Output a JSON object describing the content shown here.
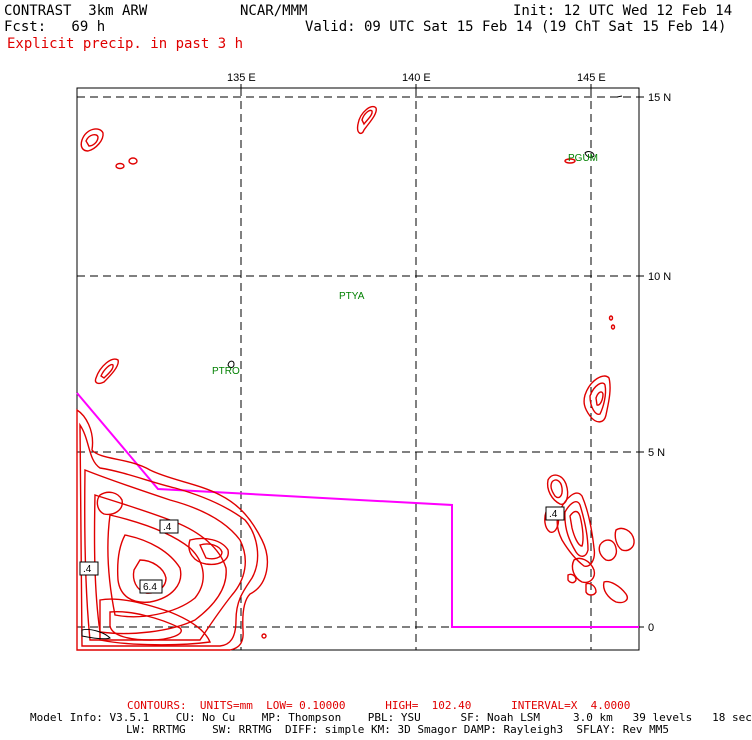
{
  "header": {
    "model": "CONTRAST  3km ARW",
    "institution": "NCAR/MMM",
    "init": "Init: 12 UTC Wed 12 Feb 14",
    "fcst": "Fcst:   69 h",
    "valid": "Valid: 09 UTC Sat 15 Feb 14 (19 ChT Sat 15 Feb 14)",
    "field": "Explicit precip. in past 3 h"
  },
  "map": {
    "lon_labels": [
      "135 E",
      "140 E",
      "145 E"
    ],
    "lat_labels": [
      "15 N",
      "10 N",
      "5 N",
      "0"
    ],
    "stations": [
      "PGUM",
      "PTYA",
      "PTRO"
    ],
    "contour_labels": [
      ".4",
      ".4",
      "6.4",
      ".4"
    ],
    "colors": {
      "contour": "#e00000",
      "boundary": "#ff00ff",
      "station": "#008000",
      "grid": "#000000"
    }
  },
  "footer": {
    "contours": "CONTOURS:  UNITS=mm  LOW= 0.10000      HIGH=  102.40      INTERVAL=X  4.0000",
    "model_info": "Model Info: V3.5.1    CU: No Cu    MP: Thompson    PBL: YSU      SF: Noah LSM     3.0 km   39 levels   18 sec",
    "model_info2": "LW: RRTMG    SW: RRTMG  DIFF: simple KM: 3D Smagor DAMP: Rayleigh3  SFLAY: Rev MM5"
  }
}
